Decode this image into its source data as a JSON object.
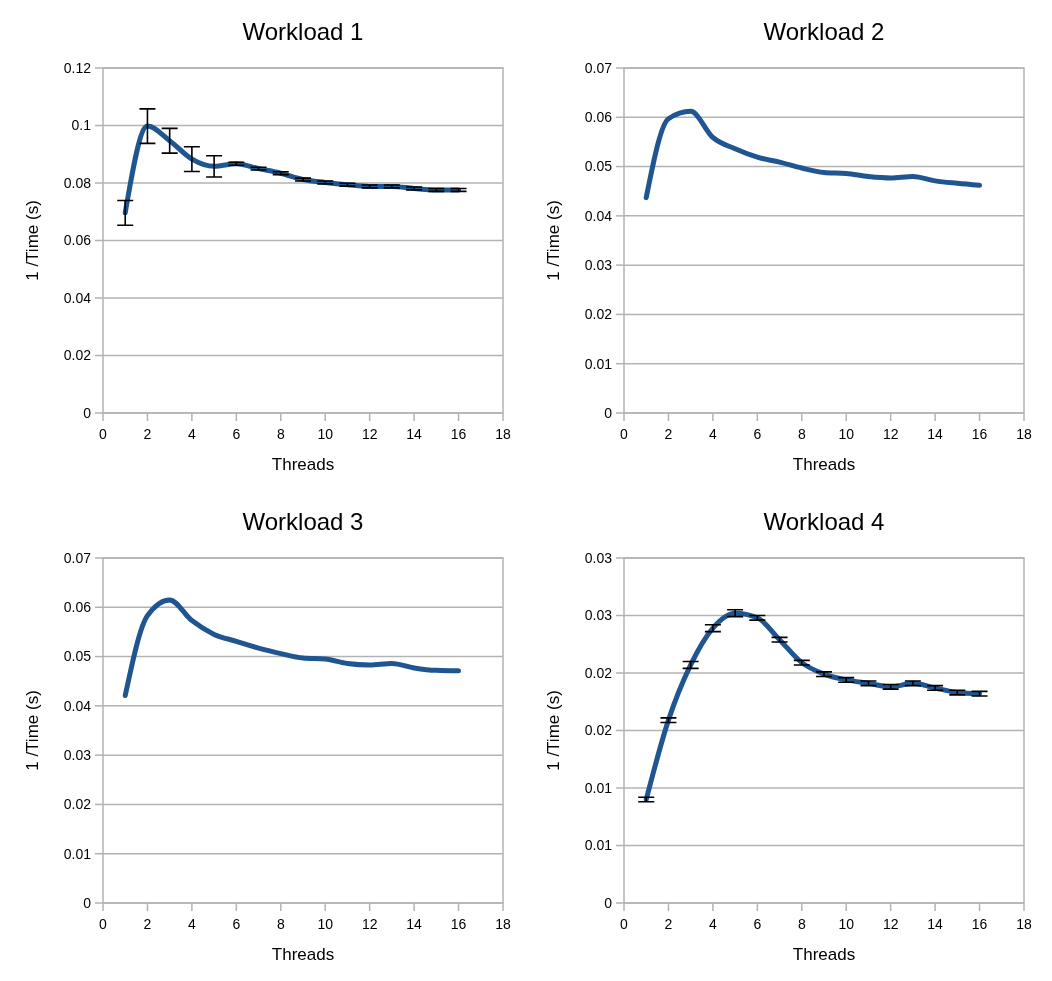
{
  "chart_data": [
    {
      "type": "line",
      "title": "Workload 1",
      "xlabel": "Threads",
      "ylabel": "1 /Time (s)",
      "x": [
        1,
        2,
        3,
        4,
        5,
        6,
        7,
        8,
        9,
        10,
        11,
        12,
        13,
        14,
        15,
        16
      ],
      "xlim": [
        0,
        18
      ],
      "xticks": [
        0,
        2,
        4,
        6,
        8,
        10,
        12,
        14,
        16,
        18
      ],
      "ylim": [
        0,
        0.12
      ],
      "yticks": [
        0,
        0.02,
        0.04,
        0.06,
        0.08,
        0.1,
        0.12
      ],
      "grid": "y",
      "marker": "none",
      "line_style": "solid",
      "series": [
        {
          "color": "#1f5591",
          "values": [
            0.0696,
            0.0998,
            0.0947,
            0.0883,
            0.0858,
            0.0867,
            0.085,
            0.0834,
            0.0812,
            0.0802,
            0.0794,
            0.0788,
            0.0788,
            0.0781,
            0.0776,
            0.0776
          ],
          "errors": [
            0.0043,
            0.006,
            0.0043,
            0.0043,
            0.0037,
            0.0005,
            0.0005,
            0.0005,
            0.0005,
            0.0005,
            0.0005,
            0.0005,
            0.0005,
            0.0005,
            0.0005,
            0.0005
          ]
        }
      ]
    },
    {
      "type": "line",
      "title": "Workload 2",
      "xlabel": "Threads",
      "ylabel": "1 /Time (s)",
      "x": [
        1,
        2,
        3,
        4,
        5,
        6,
        7,
        8,
        9,
        10,
        11,
        12,
        13,
        14,
        15,
        16
      ],
      "xlim": [
        0,
        18
      ],
      "xticks": [
        0,
        2,
        4,
        6,
        8,
        10,
        12,
        14,
        16,
        18
      ],
      "ylim": [
        0,
        0.07
      ],
      "yticks": [
        0,
        0.01,
        0.02,
        0.03,
        0.04,
        0.05,
        0.06,
        0.07
      ],
      "grid": "y",
      "marker": "none",
      "line_style": "solid",
      "series": [
        {
          "color": "#1f5591",
          "values": [
            0.0437,
            0.0597,
            0.0612,
            0.0559,
            0.0536,
            0.0519,
            0.0509,
            0.0497,
            0.0488,
            0.0486,
            0.048,
            0.0477,
            0.048,
            0.0471,
            0.0466,
            0.0462
          ]
        }
      ]
    },
    {
      "type": "line",
      "title": "Workload 3",
      "xlabel": "Threads",
      "ylabel": "1 /Time (s)",
      "x": [
        1,
        2,
        3,
        4,
        5,
        6,
        7,
        8,
        9,
        10,
        11,
        12,
        13,
        14,
        15,
        16
      ],
      "xlim": [
        0,
        18
      ],
      "xticks": [
        0,
        2,
        4,
        6,
        8,
        10,
        12,
        14,
        16,
        18
      ],
      "ylim": [
        0,
        0.07
      ],
      "yticks": [
        0,
        0.01,
        0.02,
        0.03,
        0.04,
        0.05,
        0.06,
        0.07
      ],
      "grid": "y",
      "marker": "none",
      "line_style": "solid",
      "series": [
        {
          "color": "#1f5591",
          "values": [
            0.0421,
            0.0583,
            0.0615,
            0.0573,
            0.0545,
            0.0531,
            0.0517,
            0.0506,
            0.0497,
            0.0495,
            0.0486,
            0.0483,
            0.0486,
            0.0477,
            0.0472,
            0.0471
          ]
        }
      ]
    },
    {
      "type": "line",
      "title": "Workload 4",
      "xlabel": "Threads",
      "ylabel": "1 /Time (s)",
      "x": [
        1,
        2,
        3,
        4,
        5,
        6,
        7,
        8,
        9,
        10,
        11,
        12,
        13,
        14,
        15,
        16
      ],
      "xlim": [
        0,
        18
      ],
      "xticks": [
        0,
        2,
        4,
        6,
        8,
        10,
        12,
        14,
        16,
        18
      ],
      "ylim": [
        0,
        0.03
      ],
      "yticks": [
        0,
        {
          "value": 0.005,
          "label": "0.01"
        },
        0.01,
        {
          "value": 0.015,
          "label": "0.02"
        },
        0.02,
        {
          "value": 0.025,
          "label": "0.03"
        },
        0.03
      ],
      "grid": "y",
      "marker": "none",
      "line_style": "solid",
      "series": [
        {
          "color": "#1f5591",
          "values": [
            0.009,
            0.0159,
            0.0207,
            0.0239,
            0.0252,
            0.0248,
            0.0229,
            0.0209,
            0.0199,
            0.0194,
            0.0191,
            0.0188,
            0.0191,
            0.0187,
            0.0183,
            0.0182
          ],
          "errors": [
            0.0002,
            0.0002,
            0.0003,
            0.0003,
            0.0003,
            0.0002,
            0.0002,
            0.0002,
            0.0002,
            0.0002,
            0.0002,
            0.0002,
            0.0002,
            0.0002,
            0.0002,
            0.0002
          ]
        }
      ]
    }
  ]
}
